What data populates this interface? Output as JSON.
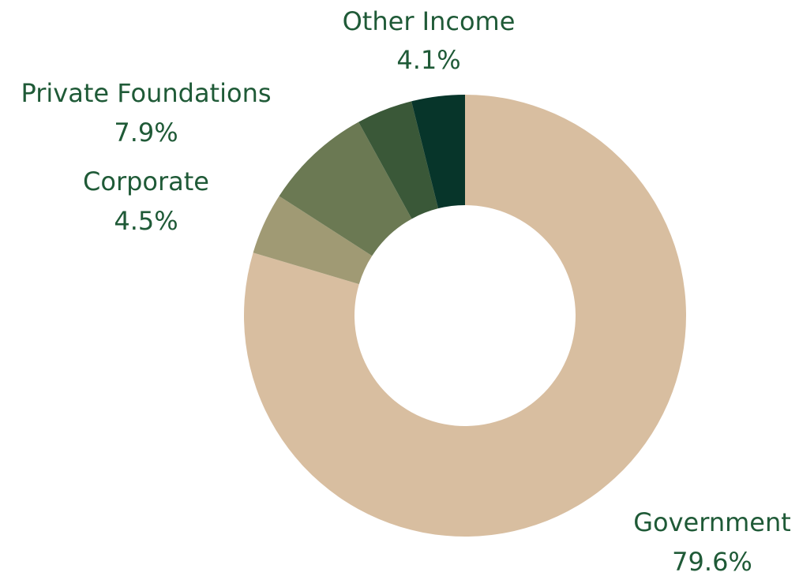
{
  "chart_data": {
    "type": "pie",
    "donut": true,
    "slices": [
      {
        "label": "Government",
        "value_label": "79.6%",
        "value": 79.6,
        "color": "#d8bea0"
      },
      {
        "label": "Corporate",
        "value_label": "4.5%",
        "value": 4.5,
        "color": "#a09a74"
      },
      {
        "label": "Private Foundations",
        "value_label": "7.9%",
        "value": 7.9,
        "color": "#6b7953"
      },
      {
        "label": "Other Income",
        "value_label": "4.1%",
        "value": 4.1,
        "color": "#3a5838"
      },
      {
        "label": "",
        "value_label": "",
        "value": 3.9,
        "color": "#07352a"
      }
    ],
    "label_color": "#1f5a37"
  }
}
